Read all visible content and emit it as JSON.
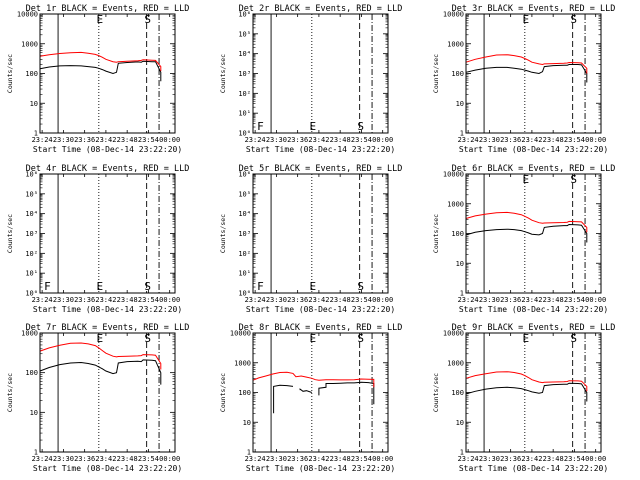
{
  "figure": {
    "xlabel": "Start Time (08-Dec-14 23:22:20)",
    "ylabel": "Counts/sec",
    "x_ticks": [
      "23:24",
      "23:30",
      "23:36",
      "23:42",
      "23:48",
      "23:54",
      "00:00"
    ],
    "colors": {
      "events": "#000000",
      "lld": "#ff0000",
      "axes": "#000000"
    }
  },
  "chart_data": [
    {
      "type": "line",
      "title": "Det 1r BLACK = Events, RED = LLD",
      "x_range_min": [
        23.4,
        61.5
      ],
      "ylim": [
        1,
        10000
      ],
      "yscale": "log",
      "y_ticks": [
        "1",
        "10",
        "100",
        "1000",
        "10000"
      ],
      "markers": {
        "solid": 28.5,
        "dotted": 40,
        "dashed": 53.5,
        "dashdot": 57
      },
      "labels": [
        {
          "text": "E",
          "x": 40
        },
        {
          "text": "S",
          "x": 53.5
        }
      ],
      "series": [
        {
          "name": "Events",
          "color": "#000000",
          "x": [
            23.4,
            26,
            29,
            32,
            35,
            37,
            39,
            40,
            41,
            42,
            44,
            45,
            45.5,
            48,
            51,
            52,
            52.5,
            55,
            56,
            57.5,
            57.5
          ],
          "y": [
            145,
            165,
            180,
            185,
            180,
            170,
            160,
            150,
            135,
            120,
            100,
            110,
            220,
            235,
            245,
            240,
            260,
            250,
            250,
            110,
            55
          ]
        },
        {
          "name": "LLD",
          "color": "#ff0000",
          "x": [
            23.4,
            26,
            29,
            32,
            35,
            37,
            39,
            40,
            41,
            42,
            44,
            45,
            45.5,
            48,
            51,
            52,
            52.5,
            55,
            56,
            57.5,
            57.5
          ],
          "y": [
            380,
            430,
            470,
            500,
            510,
            480,
            440,
            400,
            350,
            300,
            250,
            240,
            250,
            260,
            270,
            275,
            290,
            280,
            275,
            170,
            120
          ]
        }
      ]
    },
    {
      "type": "line",
      "title": "Det 2r BLACK = Events, RED = LLD",
      "x_range_min": [
        23.4,
        61.5
      ],
      "ylim": [
        1,
        1000000
      ],
      "yscale": "log",
      "y_ticks": [
        "10⁰",
        "10¹",
        "10²",
        "10³",
        "10⁴",
        "10⁵",
        "10⁶"
      ],
      "markers": {
        "solid": 28.5,
        "dotted": 40,
        "dashed": 53.5,
        "dashdot": 57
      },
      "labels": [
        {
          "text": "F",
          "x": 25.5
        },
        {
          "text": "E",
          "x": 40
        },
        {
          "text": "S",
          "x": 53.5
        }
      ],
      "series": []
    },
    {
      "type": "line",
      "title": "Det 3r BLACK = Events, RED = LLD",
      "x_range_min": [
        23.4,
        61.5
      ],
      "ylim": [
        1,
        10000
      ],
      "yscale": "log",
      "y_ticks": [
        "1",
        "10",
        "100",
        "1000",
        "10000"
      ],
      "markers": {
        "solid": 28.5,
        "dotted": 40,
        "dashed": 53.5,
        "dashdot": 57
      },
      "labels": [
        {
          "text": "E",
          "x": 40
        },
        {
          "text": "S",
          "x": 53.5
        }
      ],
      "series": [
        {
          "name": "Events",
          "color": "#000000",
          "x": [
            23.4,
            26,
            29,
            32,
            35,
            37,
            39,
            40,
            41,
            42,
            44,
            45,
            45.5,
            48,
            51,
            52,
            52.5,
            55,
            56,
            57.5,
            57.5
          ],
          "y": [
            110,
            130,
            150,
            160,
            160,
            150,
            140,
            130,
            120,
            110,
            100,
            115,
            170,
            185,
            190,
            190,
            200,
            200,
            195,
            100,
            50
          ]
        },
        {
          "name": "LLD",
          "color": "#ff0000",
          "x": [
            23.4,
            26,
            29,
            32,
            35,
            37,
            39,
            40,
            41,
            42,
            44,
            45,
            45.5,
            48,
            51,
            52,
            52.5,
            55,
            56,
            57.5,
            57.5
          ],
          "y": [
            240,
            300,
            360,
            420,
            430,
            400,
            360,
            320,
            280,
            240,
            210,
            200,
            210,
            215,
            220,
            225,
            235,
            230,
            225,
            150,
            100
          ]
        }
      ]
    },
    {
      "type": "line",
      "title": "Det 4r BLACK = Events, RED = LLD",
      "x_range_min": [
        23.4,
        61.5
      ],
      "ylim": [
        1,
        1000000
      ],
      "yscale": "log",
      "y_ticks": [
        "10⁰",
        "10¹",
        "10²",
        "10³",
        "10⁴",
        "10⁵",
        "10⁶"
      ],
      "markers": {
        "solid": 28.5,
        "dotted": 40,
        "dashed": 53.5,
        "dashdot": 57
      },
      "labels": [
        {
          "text": "F",
          "x": 25.5
        },
        {
          "text": "E",
          "x": 40
        },
        {
          "text": "S",
          "x": 53.5
        }
      ],
      "series": []
    },
    {
      "type": "line",
      "title": "Det 5r BLACK = Events, RED = LLD",
      "x_range_min": [
        23.4,
        61.5
      ],
      "ylim": [
        1,
        1000000
      ],
      "yscale": "log",
      "y_ticks": [
        "10⁰",
        "10¹",
        "10²",
        "10³",
        "10⁴",
        "10⁵",
        "10⁶"
      ],
      "markers": {
        "solid": 28.5,
        "dotted": 40,
        "dashed": 53.5,
        "dashdot": 57
      },
      "labels": [
        {
          "text": "F",
          "x": 25.5
        },
        {
          "text": "E",
          "x": 40
        },
        {
          "text": "S",
          "x": 53.5
        }
      ],
      "series": []
    },
    {
      "type": "line",
      "title": "Det 6r BLACK = Events, RED = LLD",
      "x_range_min": [
        23.4,
        61.5
      ],
      "ylim": [
        1,
        10000
      ],
      "yscale": "log",
      "y_ticks": [
        "1",
        "10",
        "100",
        "1000",
        "10000"
      ],
      "markers": {
        "solid": 28.5,
        "dotted": 40,
        "dashed": 53.5,
        "dashdot": 57
      },
      "labels": [
        {
          "text": "E",
          "x": 40
        },
        {
          "text": "S",
          "x": 53.5
        }
      ],
      "series": [
        {
          "name": "Events",
          "color": "#000000",
          "x": [
            23.4,
            26,
            29,
            32,
            35,
            37,
            39,
            40,
            41,
            42,
            44,
            45,
            45.5,
            48,
            51,
            52,
            52.5,
            55,
            56,
            57.5,
            57.5
          ],
          "y": [
            90,
            110,
            125,
            135,
            140,
            135,
            125,
            115,
            105,
            95,
            90,
            100,
            160,
            175,
            185,
            185,
            200,
            195,
            190,
            100,
            50
          ]
        },
        {
          "name": "LLD",
          "color": "#ff0000",
          "x": [
            23.4,
            26,
            29,
            32,
            35,
            37,
            39,
            40,
            41,
            42,
            44,
            45,
            45.5,
            48,
            51,
            52,
            52.5,
            55,
            56,
            57.5,
            57.5
          ],
          "y": [
            320,
            390,
            450,
            500,
            510,
            480,
            430,
            380,
            330,
            280,
            230,
            220,
            225,
            230,
            235,
            240,
            255,
            250,
            245,
            160,
            110
          ]
        }
      ]
    },
    {
      "type": "line",
      "title": "Det 7r BLACK = Events, RED = LLD",
      "x_range_min": [
        23.4,
        61.5
      ],
      "ylim": [
        1,
        1000
      ],
      "yscale": "log",
      "y_ticks": [
        "1",
        "10",
        "100",
        "1000"
      ],
      "markers": {
        "solid": 28.5,
        "dotted": 40,
        "dashed": 53.5,
        "dashdot": 57
      },
      "labels": [
        {
          "text": "E",
          "x": 40
        },
        {
          "text": "S",
          "x": 53.5
        }
      ],
      "series": [
        {
          "name": "Events",
          "color": "#000000",
          "x": [
            23.4,
            26,
            29,
            32,
            35,
            37,
            39,
            40,
            41,
            42,
            44,
            45,
            45.5,
            48,
            51,
            52,
            52.5,
            55,
            56,
            57.5,
            57.5
          ],
          "y": [
            110,
            135,
            160,
            175,
            180,
            170,
            155,
            140,
            125,
            110,
            95,
            100,
            175,
            190,
            195,
            190,
            210,
            205,
            200,
            100,
            50
          ]
        },
        {
          "name": "LLD",
          "color": "#ff0000",
          "x": [
            23.4,
            26,
            29,
            32,
            35,
            37,
            39,
            40,
            41,
            42,
            44,
            45,
            45.5,
            48,
            51,
            52,
            52.5,
            55,
            56,
            57.5,
            57.5
          ],
          "y": [
            350,
            420,
            490,
            550,
            560,
            530,
            480,
            420,
            360,
            310,
            260,
            250,
            255,
            260,
            265,
            270,
            285,
            280,
            275,
            170,
            120
          ]
        }
      ]
    },
    {
      "type": "line",
      "title": "Det 8r BLACK = Events, RED = LLD",
      "x_range_min": [
        23.4,
        61.5
      ],
      "ylim": [
        1,
        10000
      ],
      "yscale": "log",
      "y_ticks": [
        "1",
        "10",
        "100",
        "1000",
        "10000"
      ],
      "markers": {
        "solid": 28.5,
        "dotted": 40,
        "dashed": 53.5,
        "dashdot": 57
      },
      "labels": [
        {
          "text": "E",
          "x": 40
        },
        {
          "text": "S",
          "x": 53.5
        }
      ],
      "series": [
        {
          "name": "Events",
          "color": "#000000",
          "x": [
            29.2,
            29.2,
            31,
            33,
            34.7,
            34.7,
            36.7,
            36.7,
            37.5,
            38.5,
            40,
            40,
            42,
            42,
            44,
            44,
            46,
            48,
            50,
            52,
            54,
            56,
            57.5,
            57.5
          ],
          "y": [
            20,
            160,
            175,
            170,
            160,
            null,
            120,
            130,
            110,
            115,
            100,
            null,
            80,
            140,
            150,
            200,
            200,
            205,
            210,
            210,
            220,
            215,
            200,
            40
          ]
        },
        {
          "name": "LLD",
          "color": "#ff0000",
          "x": [
            23.4,
            25,
            27,
            29,
            31,
            33,
            34.7,
            35.5,
            37,
            38.5,
            40,
            41,
            42,
            44,
            46,
            48,
            50,
            52,
            54,
            56,
            57.5,
            57.5
          ],
          "y": [
            260,
            310,
            360,
            420,
            470,
            480,
            440,
            340,
            360,
            330,
            300,
            270,
            260,
            270,
            270,
            265,
            265,
            270,
            285,
            280,
            275,
            150
          ]
        }
      ]
    },
    {
      "type": "line",
      "title": "Det 9r BLACK = Events, RED = LLD",
      "x_range_min": [
        23.4,
        61.5
      ],
      "ylim": [
        1,
        10000
      ],
      "yscale": "log",
      "y_ticks": [
        "1",
        "10",
        "100",
        "1000",
        "10000"
      ],
      "markers": {
        "solid": 28.5,
        "dotted": 40,
        "dashed": 53.5,
        "dashdot": 57
      },
      "labels": [
        {
          "text": "E",
          "x": 40
        },
        {
          "text": "S",
          "x": 53.5
        }
      ],
      "series": [
        {
          "name": "Events",
          "color": "#000000",
          "x": [
            23.4,
            26,
            29,
            32,
            35,
            37,
            39,
            40,
            41,
            42,
            44,
            45,
            45.5,
            48,
            51,
            52,
            52.5,
            55,
            56,
            57.5,
            57.5
          ],
          "y": [
            90,
            110,
            130,
            145,
            150,
            145,
            135,
            125,
            115,
            105,
            95,
            100,
            170,
            185,
            190,
            190,
            205,
            200,
            195,
            100,
            50
          ]
        },
        {
          "name": "LLD",
          "color": "#ff0000",
          "x": [
            23.4,
            26,
            29,
            32,
            35,
            37,
            39,
            40,
            41,
            42,
            44,
            45,
            45.5,
            48,
            51,
            52,
            52.5,
            55,
            56,
            57.5,
            57.5
          ],
          "y": [
            300,
            370,
            430,
            490,
            500,
            470,
            420,
            370,
            320,
            270,
            225,
            215,
            220,
            225,
            230,
            235,
            250,
            245,
            240,
            160,
            110
          ]
        }
      ]
    }
  ]
}
